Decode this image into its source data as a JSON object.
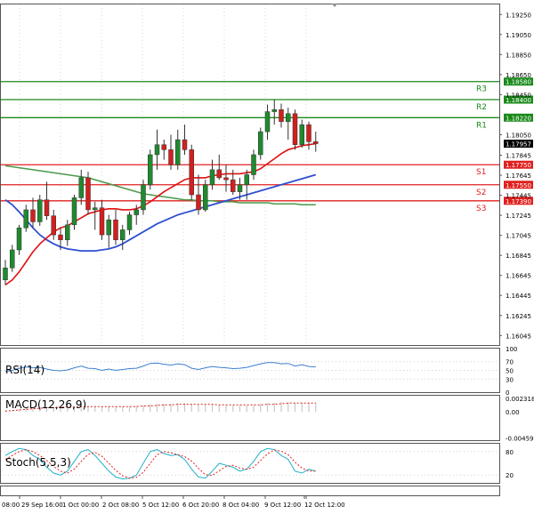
{
  "chart_data": [
    {
      "type": "candlestick",
      "title": "",
      "price_axis_labels": [
        "1.19250",
        "1.19050",
        "1.18850",
        "1.18650",
        "1.18450",
        "1.18050",
        "1.17845",
        "1.17645",
        "1.17445",
        "1.17245",
        "1.17045",
        "1.16845",
        "1.16645",
        "1.16445",
        "1.16245",
        "1.16045"
      ],
      "ylim": [
        1.1595,
        1.1935
      ],
      "current_price": "1.17957",
      "levels": [
        {
          "name": "R3",
          "label": "1.18580",
          "value": 1.1858,
          "color": "#1a8a1a"
        },
        {
          "name": "R2",
          "label": "1.18400",
          "value": 1.184,
          "color": "#1a8a1a"
        },
        {
          "name": "R1",
          "label": "1.18220",
          "value": 1.1822,
          "color": "#1a8a1a"
        },
        {
          "name": "S1",
          "label": "1.17750",
          "value": 1.1775,
          "color": "#e02020"
        },
        {
          "name": "S2",
          "label": "1.17550",
          "value": 1.1755,
          "color": "#e02020"
        },
        {
          "name": "S3",
          "label": "1.17390",
          "value": 1.1739,
          "color": "#e02020"
        }
      ],
      "time_labels": [
        "08:00",
        "29 Sep 16:00",
        "1 Oct 00:00",
        "2 Oct 08:00",
        "5 Oct 12:00",
        "6 Oct 20:00",
        "8 Oct 04:00",
        "9 Oct 12:00",
        "12 Oct 12:00"
      ],
      "candles": [
        [
          1.166,
          1.168,
          1.1655,
          1.1672
        ],
        [
          1.1672,
          1.1695,
          1.1668,
          1.169
        ],
        [
          1.169,
          1.1715,
          1.1685,
          1.1712
        ],
        [
          1.1712,
          1.1735,
          1.1708,
          1.173
        ],
        [
          1.173,
          1.1742,
          1.1712,
          1.1718
        ],
        [
          1.1718,
          1.1745,
          1.1714,
          1.174
        ],
        [
          1.174,
          1.1758,
          1.172,
          1.1724
        ],
        [
          1.1724,
          1.173,
          1.17,
          1.1705
        ],
        [
          1.1705,
          1.1712,
          1.169,
          1.17
        ],
        [
          1.17,
          1.172,
          1.1694,
          1.1715
        ],
        [
          1.1715,
          1.1745,
          1.171,
          1.1742
        ],
        [
          1.1742,
          1.177,
          1.1735,
          1.1762
        ],
        [
          1.1762,
          1.1768,
          1.1725,
          1.173
        ],
        [
          1.173,
          1.1738,
          1.171,
          1.1732
        ],
        [
          1.1732,
          1.174,
          1.17,
          1.1705
        ],
        [
          1.1705,
          1.1725,
          1.1692,
          1.172
        ],
        [
          1.172,
          1.173,
          1.1695,
          1.17
        ],
        [
          1.17,
          1.1715,
          1.169,
          1.171
        ],
        [
          1.171,
          1.1728,
          1.1705,
          1.1725
        ],
        [
          1.1725,
          1.1735,
          1.1715,
          1.173
        ],
        [
          1.173,
          1.176,
          1.1725,
          1.1755
        ],
        [
          1.1755,
          1.179,
          1.175,
          1.1785
        ],
        [
          1.1785,
          1.181,
          1.177,
          1.1795
        ],
        [
          1.1795,
          1.18,
          1.178,
          1.179
        ],
        [
          1.179,
          1.1805,
          1.177,
          1.1775
        ],
        [
          1.1775,
          1.181,
          1.177,
          1.18
        ],
        [
          1.18,
          1.1815,
          1.1785,
          1.179
        ],
        [
          1.179,
          1.1795,
          1.174,
          1.1745
        ],
        [
          1.1745,
          1.1765,
          1.1725,
          1.173
        ],
        [
          1.173,
          1.176,
          1.1728,
          1.1755
        ],
        [
          1.1755,
          1.178,
          1.175,
          1.177
        ],
        [
          1.177,
          1.1785,
          1.176,
          1.1762
        ],
        [
          1.1762,
          1.1775,
          1.1748,
          1.176
        ],
        [
          1.176,
          1.177,
          1.1745,
          1.1748
        ],
        [
          1.1748,
          1.1762,
          1.174,
          1.1755
        ],
        [
          1.1755,
          1.177,
          1.174,
          1.1765
        ],
        [
          1.1765,
          1.179,
          1.176,
          1.1785
        ],
        [
          1.1785,
          1.1812,
          1.178,
          1.1808
        ],
        [
          1.1808,
          1.1835,
          1.18,
          1.1828
        ],
        [
          1.1828,
          1.184,
          1.1815,
          1.183
        ],
        [
          1.183,
          1.1836,
          1.1812,
          1.1818
        ],
        [
          1.1818,
          1.1832,
          1.18,
          1.1826
        ],
        [
          1.1826,
          1.183,
          1.179,
          1.1795
        ],
        [
          1.1795,
          1.182,
          1.1792,
          1.1815
        ],
        [
          1.1815,
          1.1818,
          1.179,
          1.1798
        ],
        [
          1.1798,
          1.1808,
          1.1788,
          1.1796
        ]
      ],
      "ma_fast": [
        1.1655,
        1.166,
        1.1668,
        1.1678,
        1.1688,
        1.1696,
        1.1702,
        1.1708,
        1.1712,
        1.1714,
        1.1718,
        1.1722,
        1.1726,
        1.1728,
        1.173,
        1.1731,
        1.1731,
        1.173,
        1.173,
        1.1731,
        1.1734,
        1.1738,
        1.1743,
        1.1748,
        1.1752,
        1.1756,
        1.176,
        1.1762,
        1.1762,
        1.1762,
        1.1764,
        1.1765,
        1.1766,
        1.1766,
        1.1766,
        1.1767,
        1.1768,
        1.1771,
        1.1776,
        1.1781,
        1.1786,
        1.179,
        1.1792,
        1.1794,
        1.1795,
        1.1796
      ],
      "ma_medium": [
        1.174,
        1.1735,
        1.1728,
        1.172,
        1.1712,
        1.1705,
        1.17,
        1.1696,
        1.1693,
        1.1691,
        1.169,
        1.1689,
        1.1689,
        1.1689,
        1.169,
        1.1691,
        1.1693,
        1.1696,
        1.17,
        1.1704,
        1.1708,
        1.1712,
        1.1716,
        1.1719,
        1.1722,
        1.1725,
        1.1727,
        1.1729,
        1.1731,
        1.1733,
        1.1735,
        1.1737,
        1.1739,
        1.1741,
        1.1743,
        1.1745,
        1.1747,
        1.1749,
        1.1751,
        1.1753,
        1.1755,
        1.1757,
        1.1759,
        1.1761,
        1.1763,
        1.1765
      ],
      "ma_slow": [
        1.1774,
        1.1773,
        1.1772,
        1.1771,
        1.177,
        1.1769,
        1.1768,
        1.1767,
        1.1766,
        1.1765,
        1.1764,
        1.1763,
        1.1762,
        1.176,
        1.1758,
        1.1756,
        1.1754,
        1.1752,
        1.175,
        1.1748,
        1.1746,
        1.1745,
        1.1744,
        1.1743,
        1.1742,
        1.1741,
        1.174,
        1.174,
        1.1739,
        1.1739,
        1.1739,
        1.1738,
        1.1738,
        1.1738,
        1.1737,
        1.1737,
        1.1737,
        1.1737,
        1.1737,
        1.1736,
        1.1736,
        1.1736,
        1.1736,
        1.1735,
        1.1735,
        1.1735
      ]
    },
    {
      "type": "line",
      "title": "RSI(14)",
      "ylim": [
        0,
        100
      ],
      "tick_labels": [
        "100",
        "70",
        "50",
        "30",
        "0"
      ],
      "tick_values": [
        100,
        70,
        50,
        30,
        0
      ],
      "values": [
        48,
        50,
        55,
        58,
        56,
        57,
        53,
        50,
        49,
        51,
        56,
        60,
        55,
        54,
        50,
        53,
        50,
        52,
        54,
        55,
        60,
        66,
        67,
        64,
        62,
        65,
        63,
        55,
        52,
        56,
        59,
        57,
        56,
        54,
        55,
        57,
        61,
        65,
        68,
        68,
        65,
        66,
        60,
        63,
        59,
        58
      ]
    },
    {
      "type": "bar",
      "title": "MACD(12,26,9)",
      "ylim": [
        -0.005,
        0.0028
      ],
      "tick_labels": [
        "0.002318",
        "0.00",
        "-0.004592"
      ],
      "tick_values": [
        0.002318,
        0,
        -0.004592
      ],
      "values": [
        0.0002,
        0.0003,
        0.0005,
        0.0007,
        0.0008,
        0.0009,
        0.0009,
        0.0008,
        0.0008,
        0.0008,
        0.0009,
        0.001,
        0.001,
        0.001,
        0.0009,
        0.0009,
        0.0009,
        0.0009,
        0.0009,
        0.001,
        0.0011,
        0.0013,
        0.0014,
        0.0014,
        0.0014,
        0.0015,
        0.0015,
        0.0013,
        0.0012,
        0.0012,
        0.0012,
        0.0012,
        0.0011,
        0.0011,
        0.0011,
        0.0011,
        0.0012,
        0.0013,
        0.0015,
        0.0016,
        0.0017,
        0.0017,
        0.0016,
        0.0016,
        0.0016,
        0.0015
      ],
      "signal": [
        0.0001,
        0.0002,
        0.0003,
        0.0004,
        0.0005,
        0.0006,
        0.0007,
        0.0007,
        0.0008,
        0.0008,
        0.0008,
        0.0009,
        0.0009,
        0.0009,
        0.0009,
        0.0009,
        0.0009,
        0.0009,
        0.0009,
        0.0009,
        0.001,
        0.001,
        0.0011,
        0.0012,
        0.0012,
        0.0013,
        0.0013,
        0.0013,
        0.0013,
        0.0013,
        0.0013,
        0.0012,
        0.0012,
        0.0012,
        0.0012,
        0.0012,
        0.0012,
        0.0012,
        0.0013,
        0.0013,
        0.0014,
        0.0015,
        0.0015,
        0.0015,
        0.0015,
        0.0015
      ]
    },
    {
      "type": "line",
      "title": "Stoch(5,5,3)",
      "ylim": [
        0,
        100
      ],
      "tick_labels": [
        "80",
        "20"
      ],
      "tick_values": [
        80,
        20
      ],
      "k": [
        70,
        80,
        88,
        85,
        70,
        60,
        40,
        25,
        20,
        30,
        55,
        80,
        85,
        70,
        50,
        30,
        15,
        10,
        12,
        20,
        50,
        80,
        85,
        75,
        70,
        72,
        60,
        35,
        15,
        12,
        30,
        50,
        45,
        40,
        30,
        35,
        55,
        80,
        88,
        85,
        70,
        60,
        30,
        25,
        35,
        30
      ],
      "d": [
        60,
        70,
        80,
        85,
        80,
        70,
        57,
        42,
        30,
        25,
        35,
        55,
        73,
        78,
        68,
        50,
        32,
        18,
        12,
        14,
        27,
        50,
        72,
        80,
        77,
        72,
        67,
        56,
        37,
        21,
        19,
        31,
        42,
        45,
        38,
        35,
        40,
        57,
        74,
        84,
        81,
        72,
        53,
        38,
        30,
        30
      ]
    }
  ]
}
